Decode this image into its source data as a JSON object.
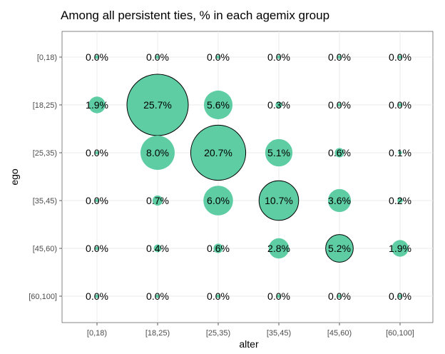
{
  "chart_data": {
    "type": "scatter",
    "title": "Among all persistent ties, % in each agemix group",
    "xlabel": "alter",
    "ylabel": "ego",
    "x_categories": [
      "[0,18)",
      "[18,25)",
      "[25,35)",
      "[35,45)",
      "[45,60)",
      "[60,100]"
    ],
    "y_categories": [
      "[0,18)",
      "[18,25)",
      "[25,35)",
      "[35,45)",
      "[45,60)",
      "[60,100]"
    ],
    "bubble_color": "#5ecda4",
    "highlight_outline_color": "#000000",
    "grid": true,
    "points": [
      {
        "ego": "[0,18)",
        "alter": "[0,18)",
        "value": 0.0,
        "label": "0.0%",
        "outlined": false
      },
      {
        "ego": "[0,18)",
        "alter": "[18,25)",
        "value": 0.0,
        "label": "0.0%",
        "outlined": false
      },
      {
        "ego": "[0,18)",
        "alter": "[25,35)",
        "value": 0.0,
        "label": "0.0%",
        "outlined": false
      },
      {
        "ego": "[0,18)",
        "alter": "[35,45)",
        "value": 0.0,
        "label": "0.0%",
        "outlined": false
      },
      {
        "ego": "[0,18)",
        "alter": "[45,60)",
        "value": 0.0,
        "label": "0.0%",
        "outlined": false
      },
      {
        "ego": "[0,18)",
        "alter": "[60,100]",
        "value": 0.0,
        "label": "0.0%",
        "outlined": false
      },
      {
        "ego": "[18,25)",
        "alter": "[0,18)",
        "value": 1.9,
        "label": "1.9%",
        "outlined": false
      },
      {
        "ego": "[18,25)",
        "alter": "[18,25)",
        "value": 25.7,
        "label": "25.7%",
        "outlined": true
      },
      {
        "ego": "[18,25)",
        "alter": "[25,35)",
        "value": 5.6,
        "label": "5.6%",
        "outlined": false
      },
      {
        "ego": "[18,25)",
        "alter": "[35,45)",
        "value": 0.3,
        "label": "0.3%",
        "outlined": false
      },
      {
        "ego": "[18,25)",
        "alter": "[45,60)",
        "value": 0.0,
        "label": "0.0%",
        "outlined": false
      },
      {
        "ego": "[18,25)",
        "alter": "[60,100]",
        "value": 0.0,
        "label": "0.0%",
        "outlined": false
      },
      {
        "ego": "[25,35)",
        "alter": "[0,18)",
        "value": 0.0,
        "label": "0.0%",
        "outlined": false
      },
      {
        "ego": "[25,35)",
        "alter": "[18,25)",
        "value": 8.0,
        "label": "8.0%",
        "outlined": false
      },
      {
        "ego": "[25,35)",
        "alter": "[25,35)",
        "value": 20.7,
        "label": "20.7%",
        "outlined": true
      },
      {
        "ego": "[25,35)",
        "alter": "[35,45)",
        "value": 5.1,
        "label": "5.1%",
        "outlined": false
      },
      {
        "ego": "[25,35)",
        "alter": "[45,60)",
        "value": 0.6,
        "label": "0.6%",
        "outlined": false
      },
      {
        "ego": "[25,35)",
        "alter": "[60,100]",
        "value": 0.1,
        "label": "0.1%",
        "outlined": false
      },
      {
        "ego": "[35,45)",
        "alter": "[0,18)",
        "value": 0.0,
        "label": "0.0%",
        "outlined": false
      },
      {
        "ego": "[35,45)",
        "alter": "[18,25)",
        "value": 0.7,
        "label": "0.7%",
        "outlined": false
      },
      {
        "ego": "[35,45)",
        "alter": "[25,35)",
        "value": 6.0,
        "label": "6.0%",
        "outlined": false
      },
      {
        "ego": "[35,45)",
        "alter": "[35,45)",
        "value": 10.7,
        "label": "10.7%",
        "outlined": true
      },
      {
        "ego": "[35,45)",
        "alter": "[45,60)",
        "value": 3.6,
        "label": "3.6%",
        "outlined": false
      },
      {
        "ego": "[35,45)",
        "alter": "[60,100]",
        "value": 0.2,
        "label": "0.2%",
        "outlined": false
      },
      {
        "ego": "[45,60)",
        "alter": "[0,18)",
        "value": 0.0,
        "label": "0.0%",
        "outlined": false
      },
      {
        "ego": "[45,60)",
        "alter": "[18,25)",
        "value": 0.4,
        "label": "0.4%",
        "outlined": false
      },
      {
        "ego": "[45,60)",
        "alter": "[25,35)",
        "value": 0.6,
        "label": "0.6%",
        "outlined": false
      },
      {
        "ego": "[45,60)",
        "alter": "[35,45)",
        "value": 2.8,
        "label": "2.8%",
        "outlined": false
      },
      {
        "ego": "[45,60)",
        "alter": "[45,60)",
        "value": 5.2,
        "label": "5.2%",
        "outlined": true
      },
      {
        "ego": "[45,60)",
        "alter": "[60,100]",
        "value": 1.9,
        "label": "1.9%",
        "outlined": false
      },
      {
        "ego": "[60,100]",
        "alter": "[0,18)",
        "value": 0.0,
        "label": "0.0%",
        "outlined": false
      },
      {
        "ego": "[60,100]",
        "alter": "[18,25)",
        "value": 0.0,
        "label": "0.0%",
        "outlined": false
      },
      {
        "ego": "[60,100]",
        "alter": "[25,35)",
        "value": 0.0,
        "label": "0.0%",
        "outlined": false
      },
      {
        "ego": "[60,100]",
        "alter": "[35,45)",
        "value": 0.0,
        "label": "0.0%",
        "outlined": false
      },
      {
        "ego": "[60,100]",
        "alter": "[45,60)",
        "value": 0.0,
        "label": "0.0%",
        "outlined": false
      },
      {
        "ego": "[60,100]",
        "alter": "[60,100]",
        "value": 0.0,
        "label": "0.0%",
        "outlined": false
      }
    ]
  }
}
